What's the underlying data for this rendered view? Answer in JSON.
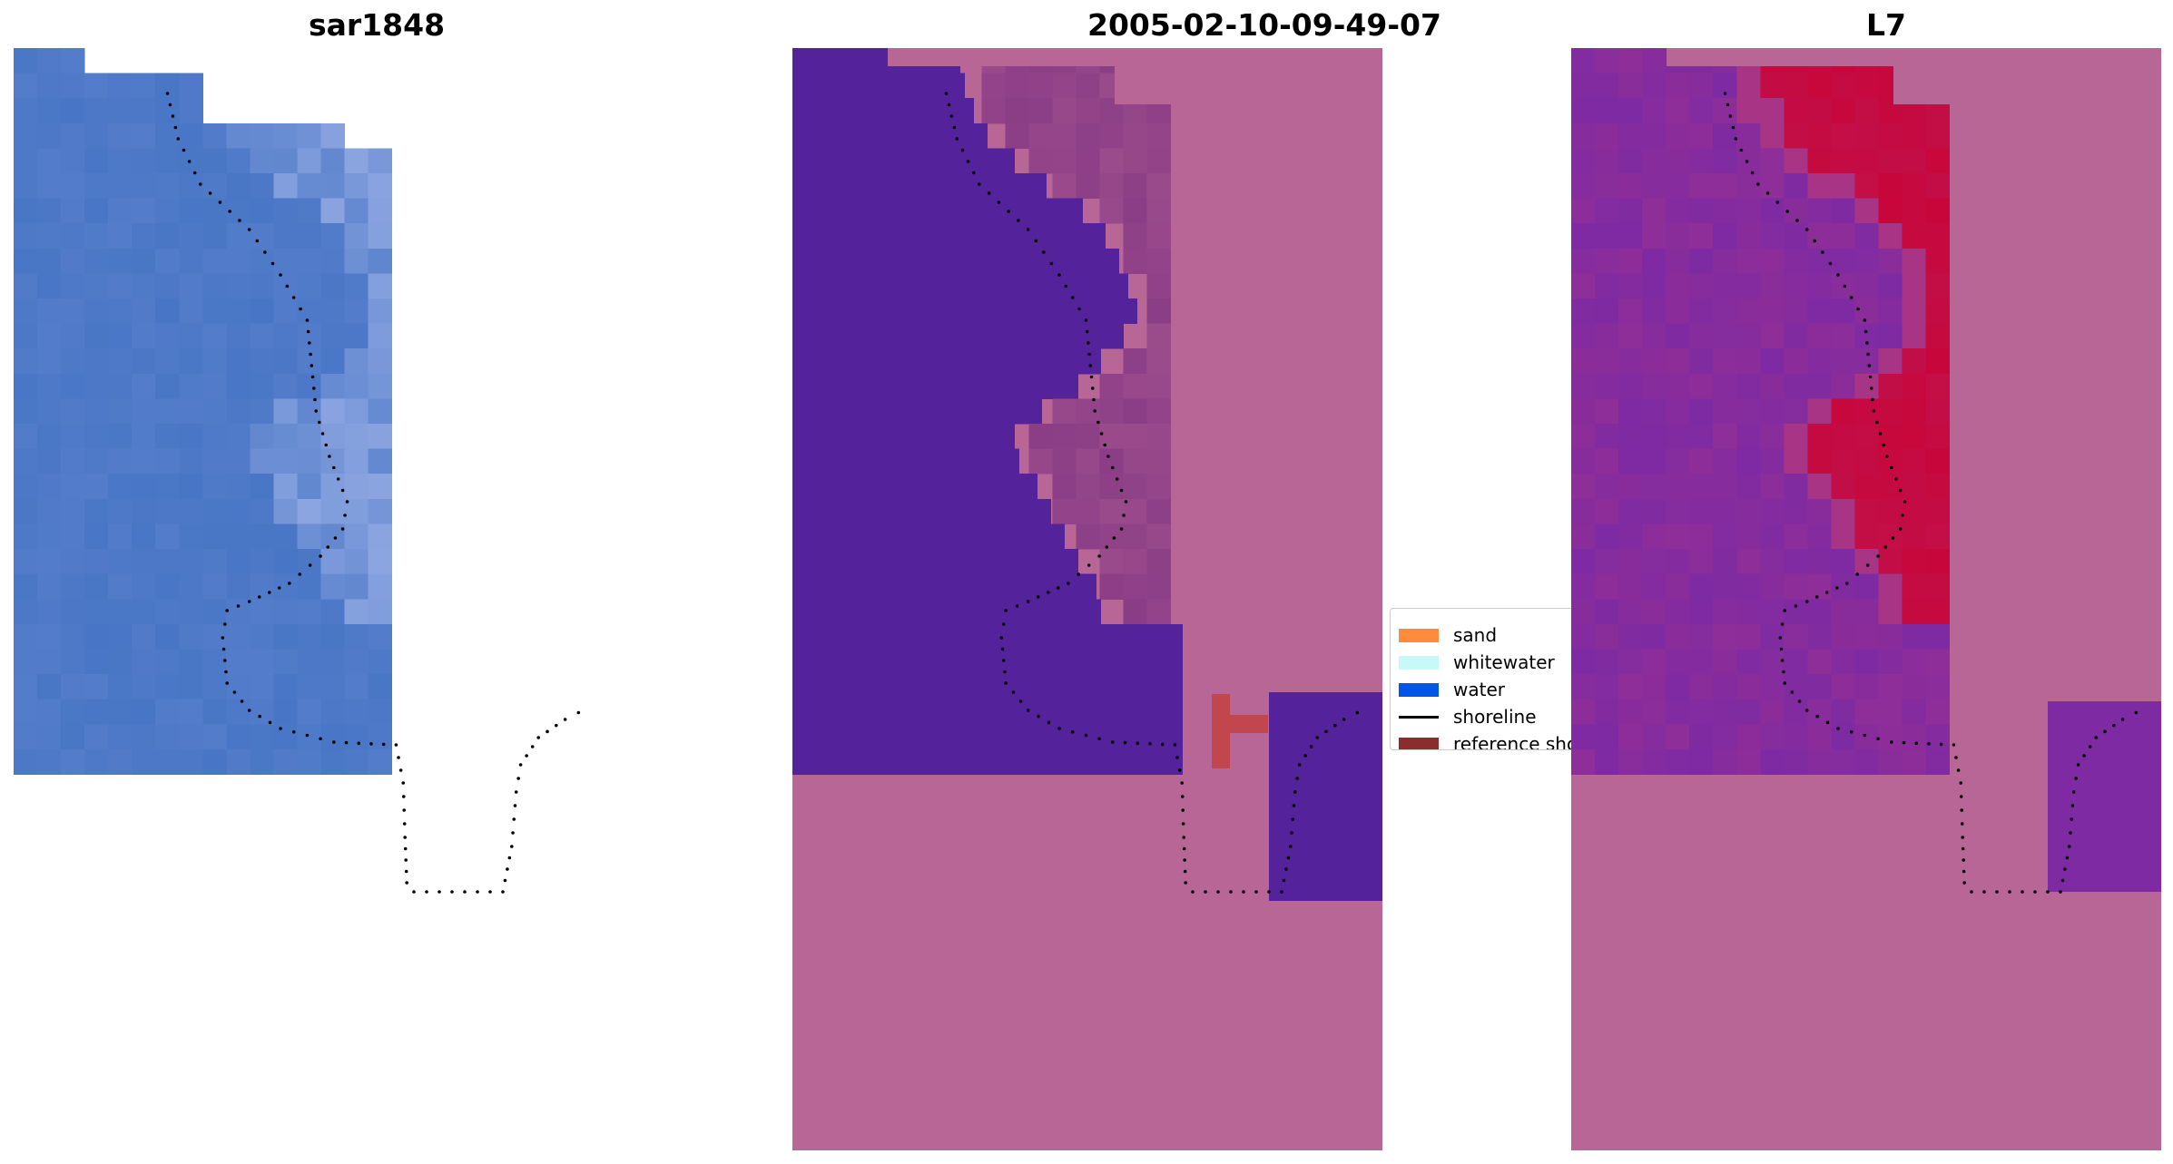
{
  "panels": [
    {
      "title": "sar1848",
      "style": "rgb",
      "colors": {
        "base": "#4472c4",
        "bright": "#9fb3e8",
        "white": "#eef4fb",
        "ocean_right": "#4a86cc"
      }
    },
    {
      "title": "2005-02-10-09-49-07",
      "style": "classified",
      "colors": {
        "water_class": "#54229a",
        "nodata": "#b86695",
        "land": "#8a3c86",
        "reference": "#c2464d"
      }
    },
    {
      "title": "L7",
      "style": "index",
      "colors": {
        "water_index": "#7e2aa3",
        "land_index": "#c8063a",
        "nodata": "#b86695",
        "transition": "#a83486"
      }
    }
  ],
  "legend": {
    "items": [
      {
        "label": "sand",
        "color": "#ff8c3a",
        "kind": "patch"
      },
      {
        "label": "whitewater",
        "color": "#c7f9f9",
        "kind": "patch"
      },
      {
        "label": "water",
        "color": "#0057e7",
        "kind": "patch"
      },
      {
        "label": "shoreline",
        "color": "#000000",
        "kind": "line"
      },
      {
        "label": "reference shoreline",
        "color": "#8b2d2d",
        "kind": "patch"
      }
    ]
  },
  "shoreline_color": "#000000"
}
